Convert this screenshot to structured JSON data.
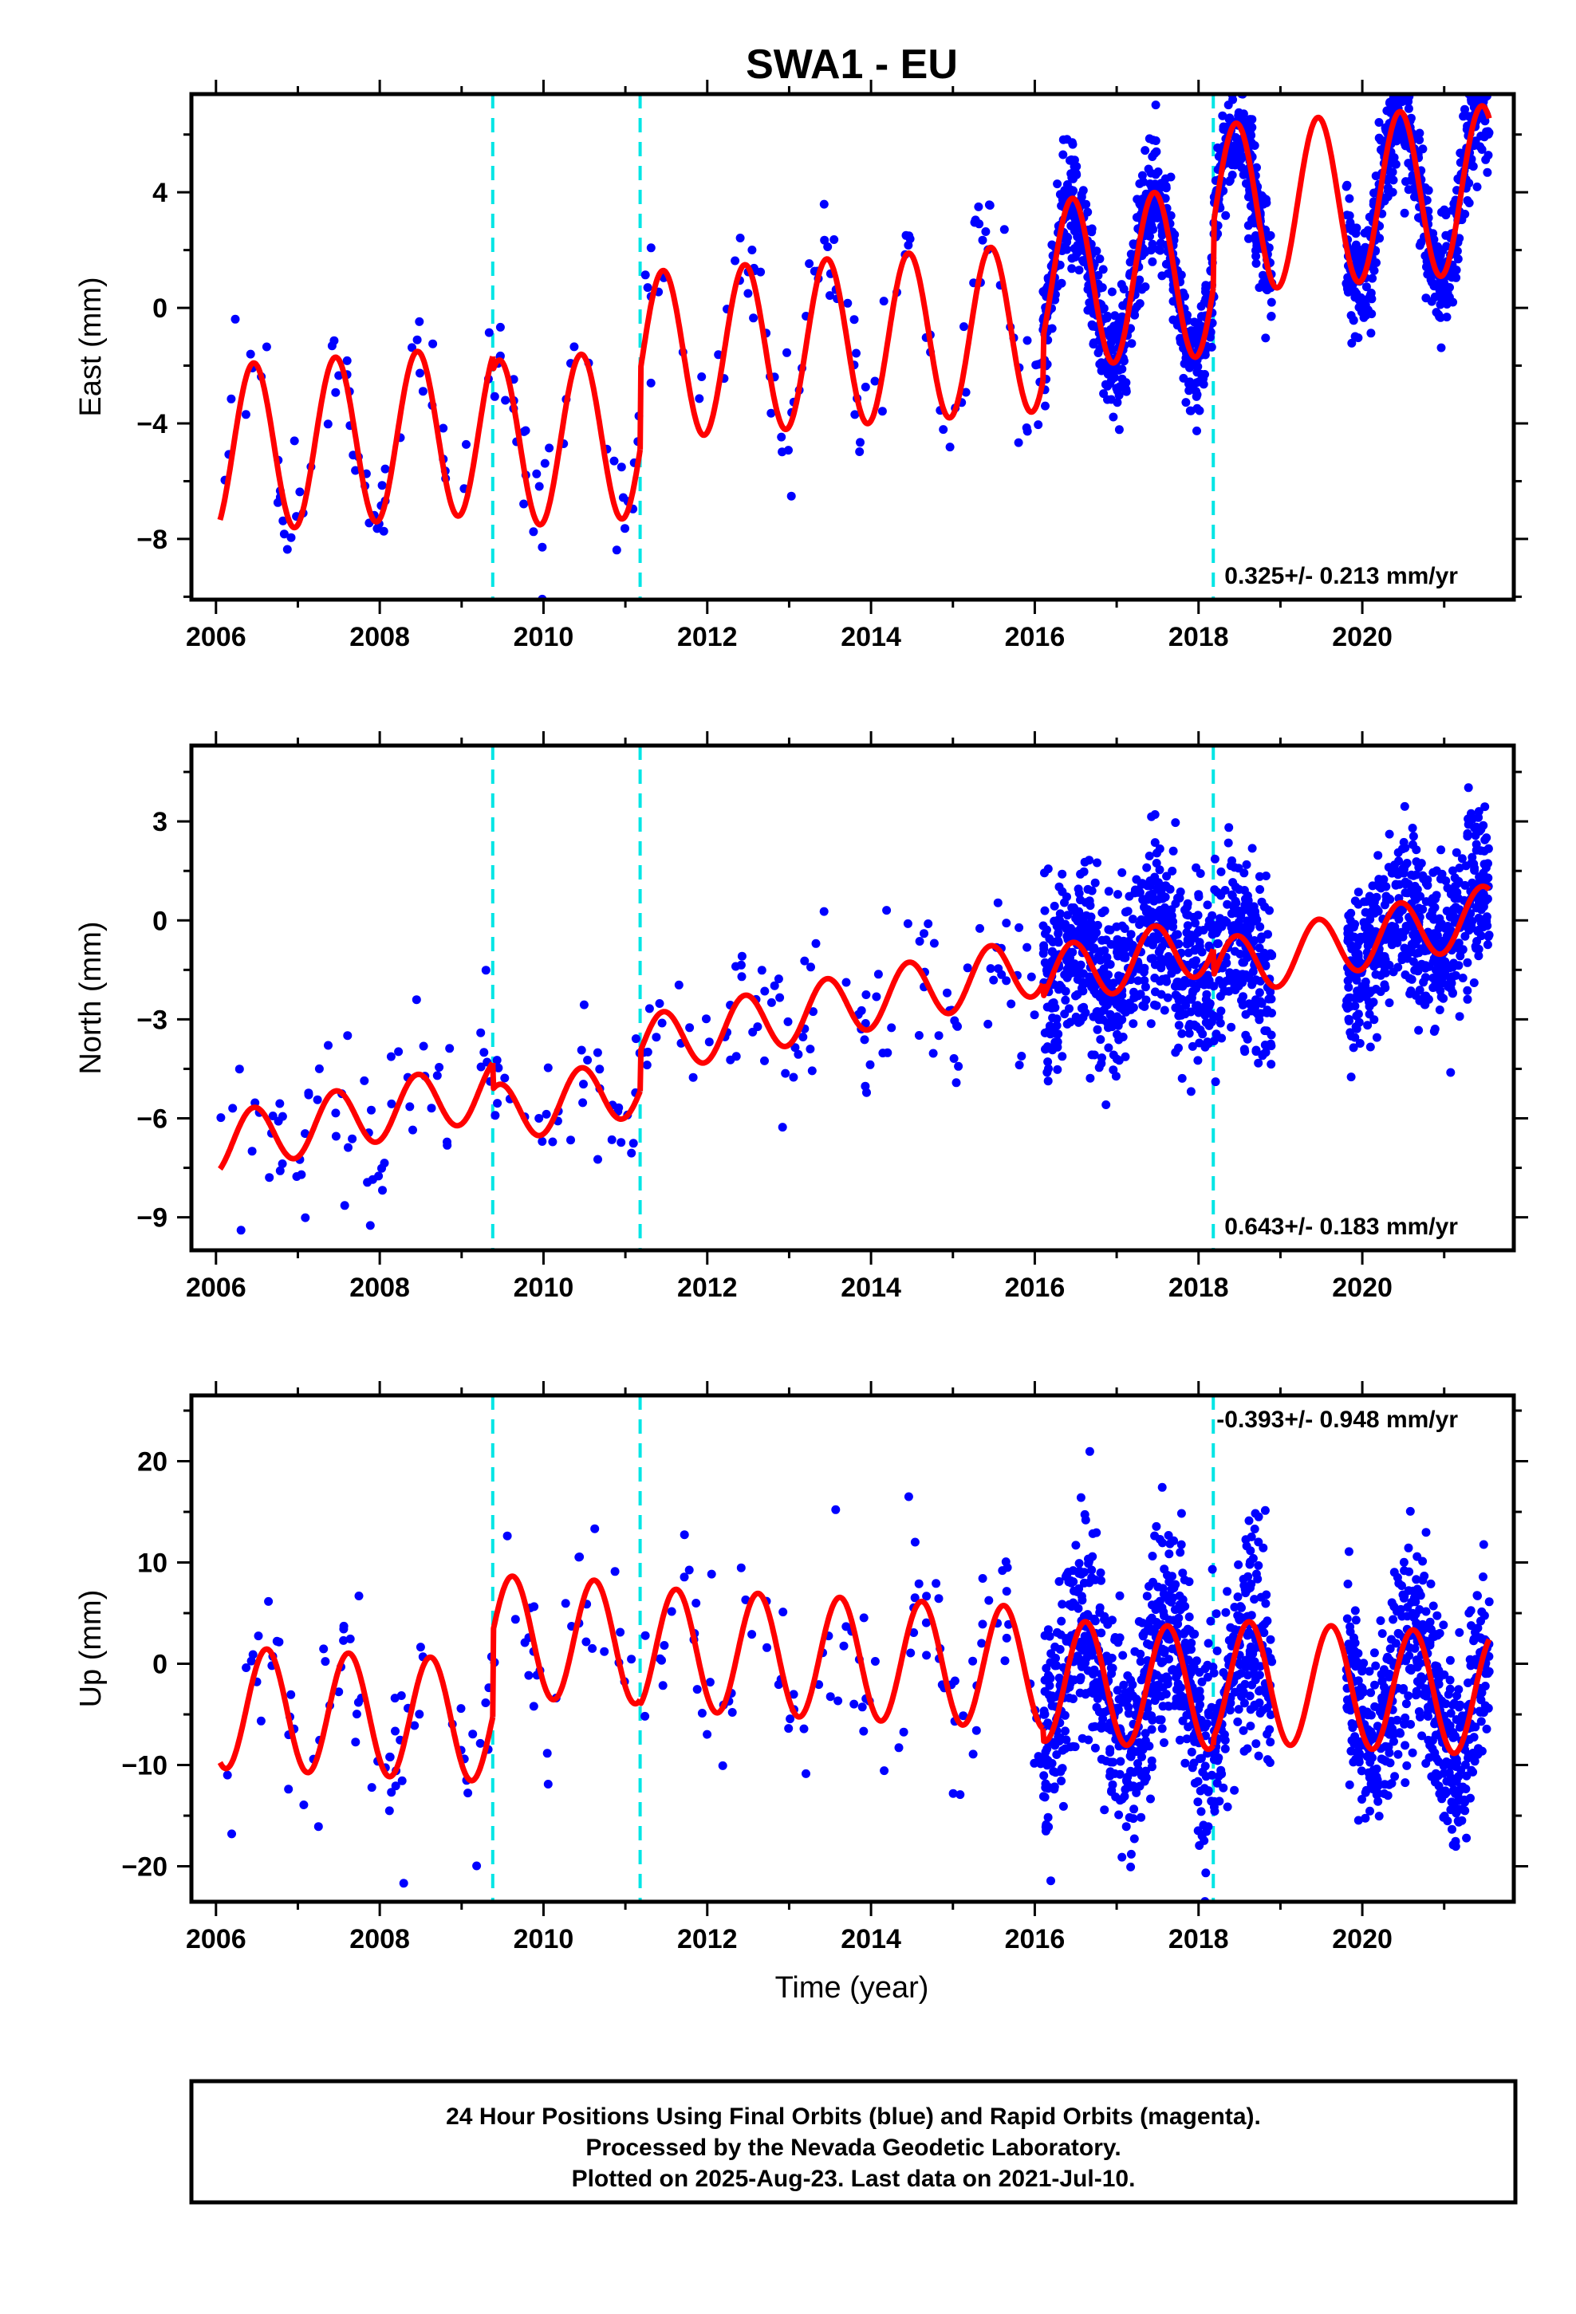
{
  "title": "SWA1 - EU",
  "xlabel": "Time (year)",
  "footer": {
    "line1": "24 Hour Positions Using Final Orbits (blue) and Rapid Orbits (magenta).",
    "line2": "Processed by the Nevada Geodetic Laboratory.",
    "line3": "Plotted on 2025-Aug-23. Last data on 2021-Jul-10."
  },
  "colors": {
    "data_points": "#0000ff",
    "model_fit": "#ff0000",
    "event_lines": "#00e5e5",
    "axes": "#000000"
  },
  "chart_data": [
    {
      "type": "scatter",
      "panel": "east",
      "ylabel": "East (mm)",
      "xlim": [
        2005.7,
        2021.85
      ],
      "ylim": [
        -10.1,
        7.4
      ],
      "yticks": [
        -8,
        -4,
        0,
        4
      ],
      "xticks": [
        2006,
        2008,
        2010,
        2012,
        2014,
        2016,
        2018,
        2020
      ],
      "event_lines": [
        2009.38,
        2011.18,
        2018.18
      ],
      "rate_annotation": "0.325+/- 0.213 mm/yr",
      "rate_position": "bottom-right",
      "model": {
        "amplitude": 2.9,
        "phase_year": 0.46,
        "segments": [
          {
            "start": 2006.05,
            "end": 2009.38,
            "a": -4.9,
            "b": 0.2
          },
          {
            "start": 2009.38,
            "end": 2011.18,
            "a": -5.4,
            "b": 0.2
          },
          {
            "start": 2011.18,
            "end": 2016.1,
            "a": -2.7,
            "b": 0.2
          },
          {
            "start": 2016.1,
            "end": 2018.18,
            "a": -1.2,
            "b": 0.2
          },
          {
            "start": 2018.18,
            "end": 2021.55,
            "a": 1.0,
            "b": 0.2
          }
        ]
      },
      "scatter": {
        "sparse_start": 2006.05,
        "sparse_end": 2016.1,
        "sparse_count": 200,
        "sparse_noise": 1.3,
        "dense_intervals": [
          [
            2016.1,
            2018.9
          ],
          [
            2019.8,
            2021.55
          ]
        ],
        "dense_count": 1400,
        "dense_noise": 1.0
      }
    },
    {
      "type": "scatter",
      "panel": "north",
      "ylabel": "North (mm)",
      "xlim": [
        2005.7,
        2021.85
      ],
      "ylim": [
        -10.0,
        5.3
      ],
      "yticks": [
        -9,
        -6,
        -3,
        0,
        3
      ],
      "xticks": [
        2006,
        2008,
        2010,
        2012,
        2014,
        2016,
        2018,
        2020
      ],
      "event_lines": [
        2009.38,
        2011.18,
        2018.18
      ],
      "rate_annotation": "0.643+/- 0.183 mm/yr",
      "rate_position": "bottom-right",
      "model": {
        "amplitude": 0.9,
        "phase_year": 0.46,
        "segments": [
          {
            "start": 2006.05,
            "end": 2009.38,
            "a": -6.8,
            "b": 0.5
          },
          {
            "start": 2009.38,
            "end": 2011.18,
            "a": -7.6,
            "b": 0.5
          },
          {
            "start": 2011.18,
            "end": 2016.1,
            "a": -6.4,
            "b": 0.5
          },
          {
            "start": 2016.1,
            "end": 2018.18,
            "a": -6.8,
            "b": 0.5
          },
          {
            "start": 2018.18,
            "end": 2021.55,
            "a": -7.6,
            "b": 0.5
          }
        ]
      },
      "scatter": {
        "sparse_start": 2006.05,
        "sparse_end": 2016.1,
        "sparse_count": 200,
        "sparse_noise": 1.2,
        "dense_intervals": [
          [
            2016.1,
            2018.9
          ],
          [
            2019.8,
            2021.55
          ]
        ],
        "dense_count": 1400,
        "dense_noise": 1.3
      }
    },
    {
      "type": "scatter",
      "panel": "up",
      "ylabel": "Up (mm)",
      "xlim": [
        2005.7,
        2021.85
      ],
      "ylim": [
        -23.5,
        26.5
      ],
      "yticks": [
        -20,
        -10,
        0,
        10,
        20
      ],
      "xticks": [
        2006,
        2008,
        2010,
        2012,
        2014,
        2016,
        2018,
        2020
      ],
      "event_lines": [
        2009.38,
        2011.18,
        2018.18
      ],
      "rate_annotation": "-0.393+/- 0.948 mm/yr",
      "rate_position": "top-right",
      "model": {
        "amplitude": 6.0,
        "phase_year": 0.62,
        "segments": [
          {
            "start": 2006.05,
            "end": 2009.38,
            "a": -4.3,
            "b": -0.4
          },
          {
            "start": 2009.38,
            "end": 2011.18,
            "a": 4.1,
            "b": -0.4
          },
          {
            "start": 2011.18,
            "end": 2016.1,
            "a": 3.6,
            "b": -0.4
          },
          {
            "start": 2016.1,
            "end": 2018.18,
            "a": 2.4,
            "b": -0.4
          },
          {
            "start": 2018.18,
            "end": 2021.55,
            "a": 3.2,
            "b": -0.4
          }
        ]
      },
      "scatter": {
        "sparse_start": 2006.05,
        "sparse_end": 2016.1,
        "sparse_count": 200,
        "sparse_noise": 4.5,
        "dense_intervals": [
          [
            2016.1,
            2018.9
          ],
          [
            2019.8,
            2021.55
          ]
        ],
        "dense_count": 1400,
        "dense_noise": 5.0
      }
    }
  ]
}
